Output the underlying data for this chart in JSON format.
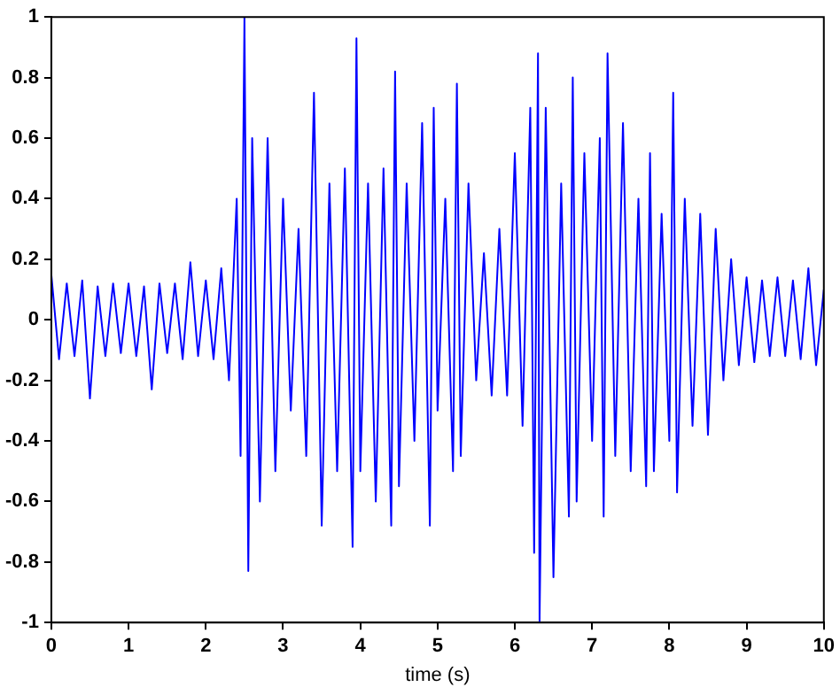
{
  "chart_data": {
    "type": "line",
    "xlabel": "time (s)",
    "x": [
      0,
      0.1,
      0.2,
      0.3,
      0.4,
      0.5,
      0.6,
      0.7,
      0.8,
      0.9,
      1.0,
      1.1,
      1.2,
      1.3,
      1.4,
      1.5,
      1.6,
      1.7,
      1.8,
      1.9,
      2.0,
      2.1,
      2.2,
      2.3,
      2.4,
      2.45,
      2.5,
      2.55,
      2.6,
      2.7,
      2.8,
      2.9,
      3.0,
      3.1,
      3.2,
      3.3,
      3.4,
      3.5,
      3.6,
      3.7,
      3.8,
      3.9,
      3.95,
      4.0,
      4.1,
      4.2,
      4.3,
      4.4,
      4.45,
      4.5,
      4.6,
      4.7,
      4.8,
      4.9,
      4.95,
      5.0,
      5.1,
      5.2,
      5.25,
      5.3,
      5.4,
      5.5,
      5.6,
      5.7,
      5.8,
      5.9,
      6.0,
      6.1,
      6.2,
      6.25,
      6.3,
      6.32,
      6.4,
      6.5,
      6.6,
      6.7,
      6.75,
      6.8,
      6.9,
      7.0,
      7.1,
      7.15,
      7.2,
      7.3,
      7.4,
      7.5,
      7.6,
      7.7,
      7.75,
      7.8,
      7.9,
      8.0,
      8.05,
      8.1,
      8.2,
      8.3,
      8.4,
      8.5,
      8.6,
      8.7,
      8.8,
      8.9,
      9.0,
      9.1,
      9.2,
      9.3,
      9.4,
      9.5,
      9.6,
      9.7,
      9.8,
      9.9,
      10.0
    ],
    "series": [
      {
        "color": "#0000ff",
        "values": [
          0.15,
          -0.13,
          0.12,
          -0.12,
          0.13,
          -0.26,
          0.11,
          -0.12,
          0.12,
          -0.11,
          0.12,
          -0.12,
          0.11,
          -0.23,
          0.12,
          -0.11,
          0.12,
          -0.13,
          0.19,
          -0.12,
          0.13,
          -0.13,
          0.17,
          -0.2,
          0.4,
          -0.45,
          1.0,
          -0.83,
          0.6,
          -0.6,
          0.6,
          -0.5,
          0.4,
          -0.3,
          0.3,
          -0.45,
          0.75,
          -0.68,
          0.45,
          -0.5,
          0.5,
          -0.75,
          0.93,
          -0.5,
          0.45,
          -0.6,
          0.5,
          -0.68,
          0.82,
          -0.55,
          0.45,
          -0.4,
          0.65,
          -0.68,
          0.7,
          -0.3,
          0.4,
          -0.5,
          0.78,
          -0.45,
          0.45,
          -0.2,
          0.22,
          -0.25,
          0.3,
          -0.25,
          0.55,
          -0.35,
          0.7,
          -0.77,
          0.88,
          -1.0,
          0.7,
          -0.85,
          0.45,
          -0.65,
          0.8,
          -0.6,
          0.55,
          -0.4,
          0.6,
          -0.65,
          0.88,
          -0.45,
          0.65,
          -0.5,
          0.4,
          -0.55,
          0.55,
          -0.5,
          0.35,
          -0.4,
          0.75,
          -0.57,
          0.4,
          -0.35,
          0.35,
          -0.38,
          0.3,
          -0.2,
          0.2,
          -0.15,
          0.14,
          -0.14,
          0.13,
          -0.12,
          0.14,
          -0.12,
          0.13,
          -0.13,
          0.17,
          -0.15,
          0.1
        ]
      }
    ],
    "xlim": [
      0,
      10
    ],
    "xticks": [
      0,
      1,
      2,
      3,
      4,
      5,
      6,
      7,
      8,
      9,
      10
    ],
    "ylim": [
      -1,
      1
    ],
    "yticks": [
      -1,
      -0.8,
      -0.6,
      -0.4,
      -0.2,
      0,
      0.2,
      0.4,
      0.6,
      0.8,
      1
    ],
    "grid": false,
    "legend": false,
    "marker": "none",
    "line_style": "solid"
  }
}
